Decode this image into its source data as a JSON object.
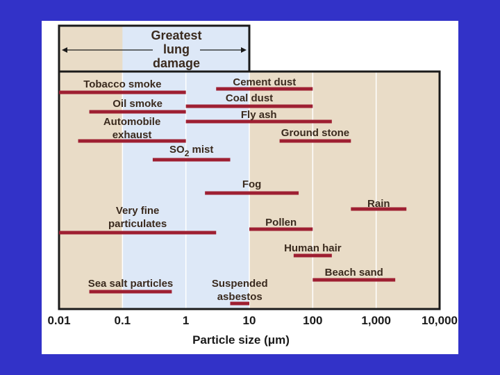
{
  "chart_data": {
    "type": "range-bar",
    "xscale": "log",
    "xlim": [
      0.01,
      10000
    ],
    "x_ticks": [
      "0.01",
      "0.1",
      "1",
      "10",
      "100",
      "1,000",
      "10,000"
    ],
    "x_tick_values": [
      0.01,
      0.1,
      1,
      10,
      100,
      1000,
      10000
    ],
    "xlabel": "Particle size (μm)",
    "highlight": {
      "label_lines": [
        "Greatest",
        "lung",
        "damage"
      ],
      "range": [
        0.1,
        10
      ]
    },
    "bar_color": "#9e1f32",
    "background_color": "#e9dcc7",
    "highlight_color": "#dde8f7",
    "series": [
      {
        "label_lines": [
          "Tobacco smoke"
        ],
        "range": [
          0.01,
          1
        ]
      },
      {
        "label_lines": [
          "Cement dust"
        ],
        "range": [
          3,
          100
        ]
      },
      {
        "label_lines": [
          "Oil smoke"
        ],
        "range": [
          0.03,
          1
        ]
      },
      {
        "label_lines": [
          "Coal dust"
        ],
        "range": [
          1,
          100
        ]
      },
      {
        "label_lines": [
          "Fly ash"
        ],
        "range": [
          1,
          200
        ]
      },
      {
        "label_lines": [
          "Automobile",
          "exhaust"
        ],
        "range": [
          0.02,
          1
        ]
      },
      {
        "label_lines": [
          "Ground stone"
        ],
        "range": [
          30,
          400
        ]
      },
      {
        "label_lines": [
          "SO",
          "2",
          " mist"
        ],
        "subscript": true,
        "range": [
          0.3,
          5
        ]
      },
      {
        "label_lines": [
          "Fog"
        ],
        "range": [
          2,
          60
        ]
      },
      {
        "label_lines": [
          "Rain"
        ],
        "range": [
          400,
          3000
        ]
      },
      {
        "label_lines": [
          "Very fine",
          "particulates"
        ],
        "range": [
          0.01,
          3
        ]
      },
      {
        "label_lines": [
          "Pollen"
        ],
        "range": [
          10,
          100
        ]
      },
      {
        "label_lines": [
          "Human hair"
        ],
        "range": [
          50,
          200
        ]
      },
      {
        "label_lines": [
          "Beach sand"
        ],
        "range": [
          100,
          2000
        ]
      },
      {
        "label_lines": [
          "Sea salt particles"
        ],
        "range": [
          0.03,
          0.6
        ]
      },
      {
        "label_lines": [
          "Suspended",
          "asbestos"
        ],
        "range": [
          5,
          10
        ]
      }
    ]
  }
}
